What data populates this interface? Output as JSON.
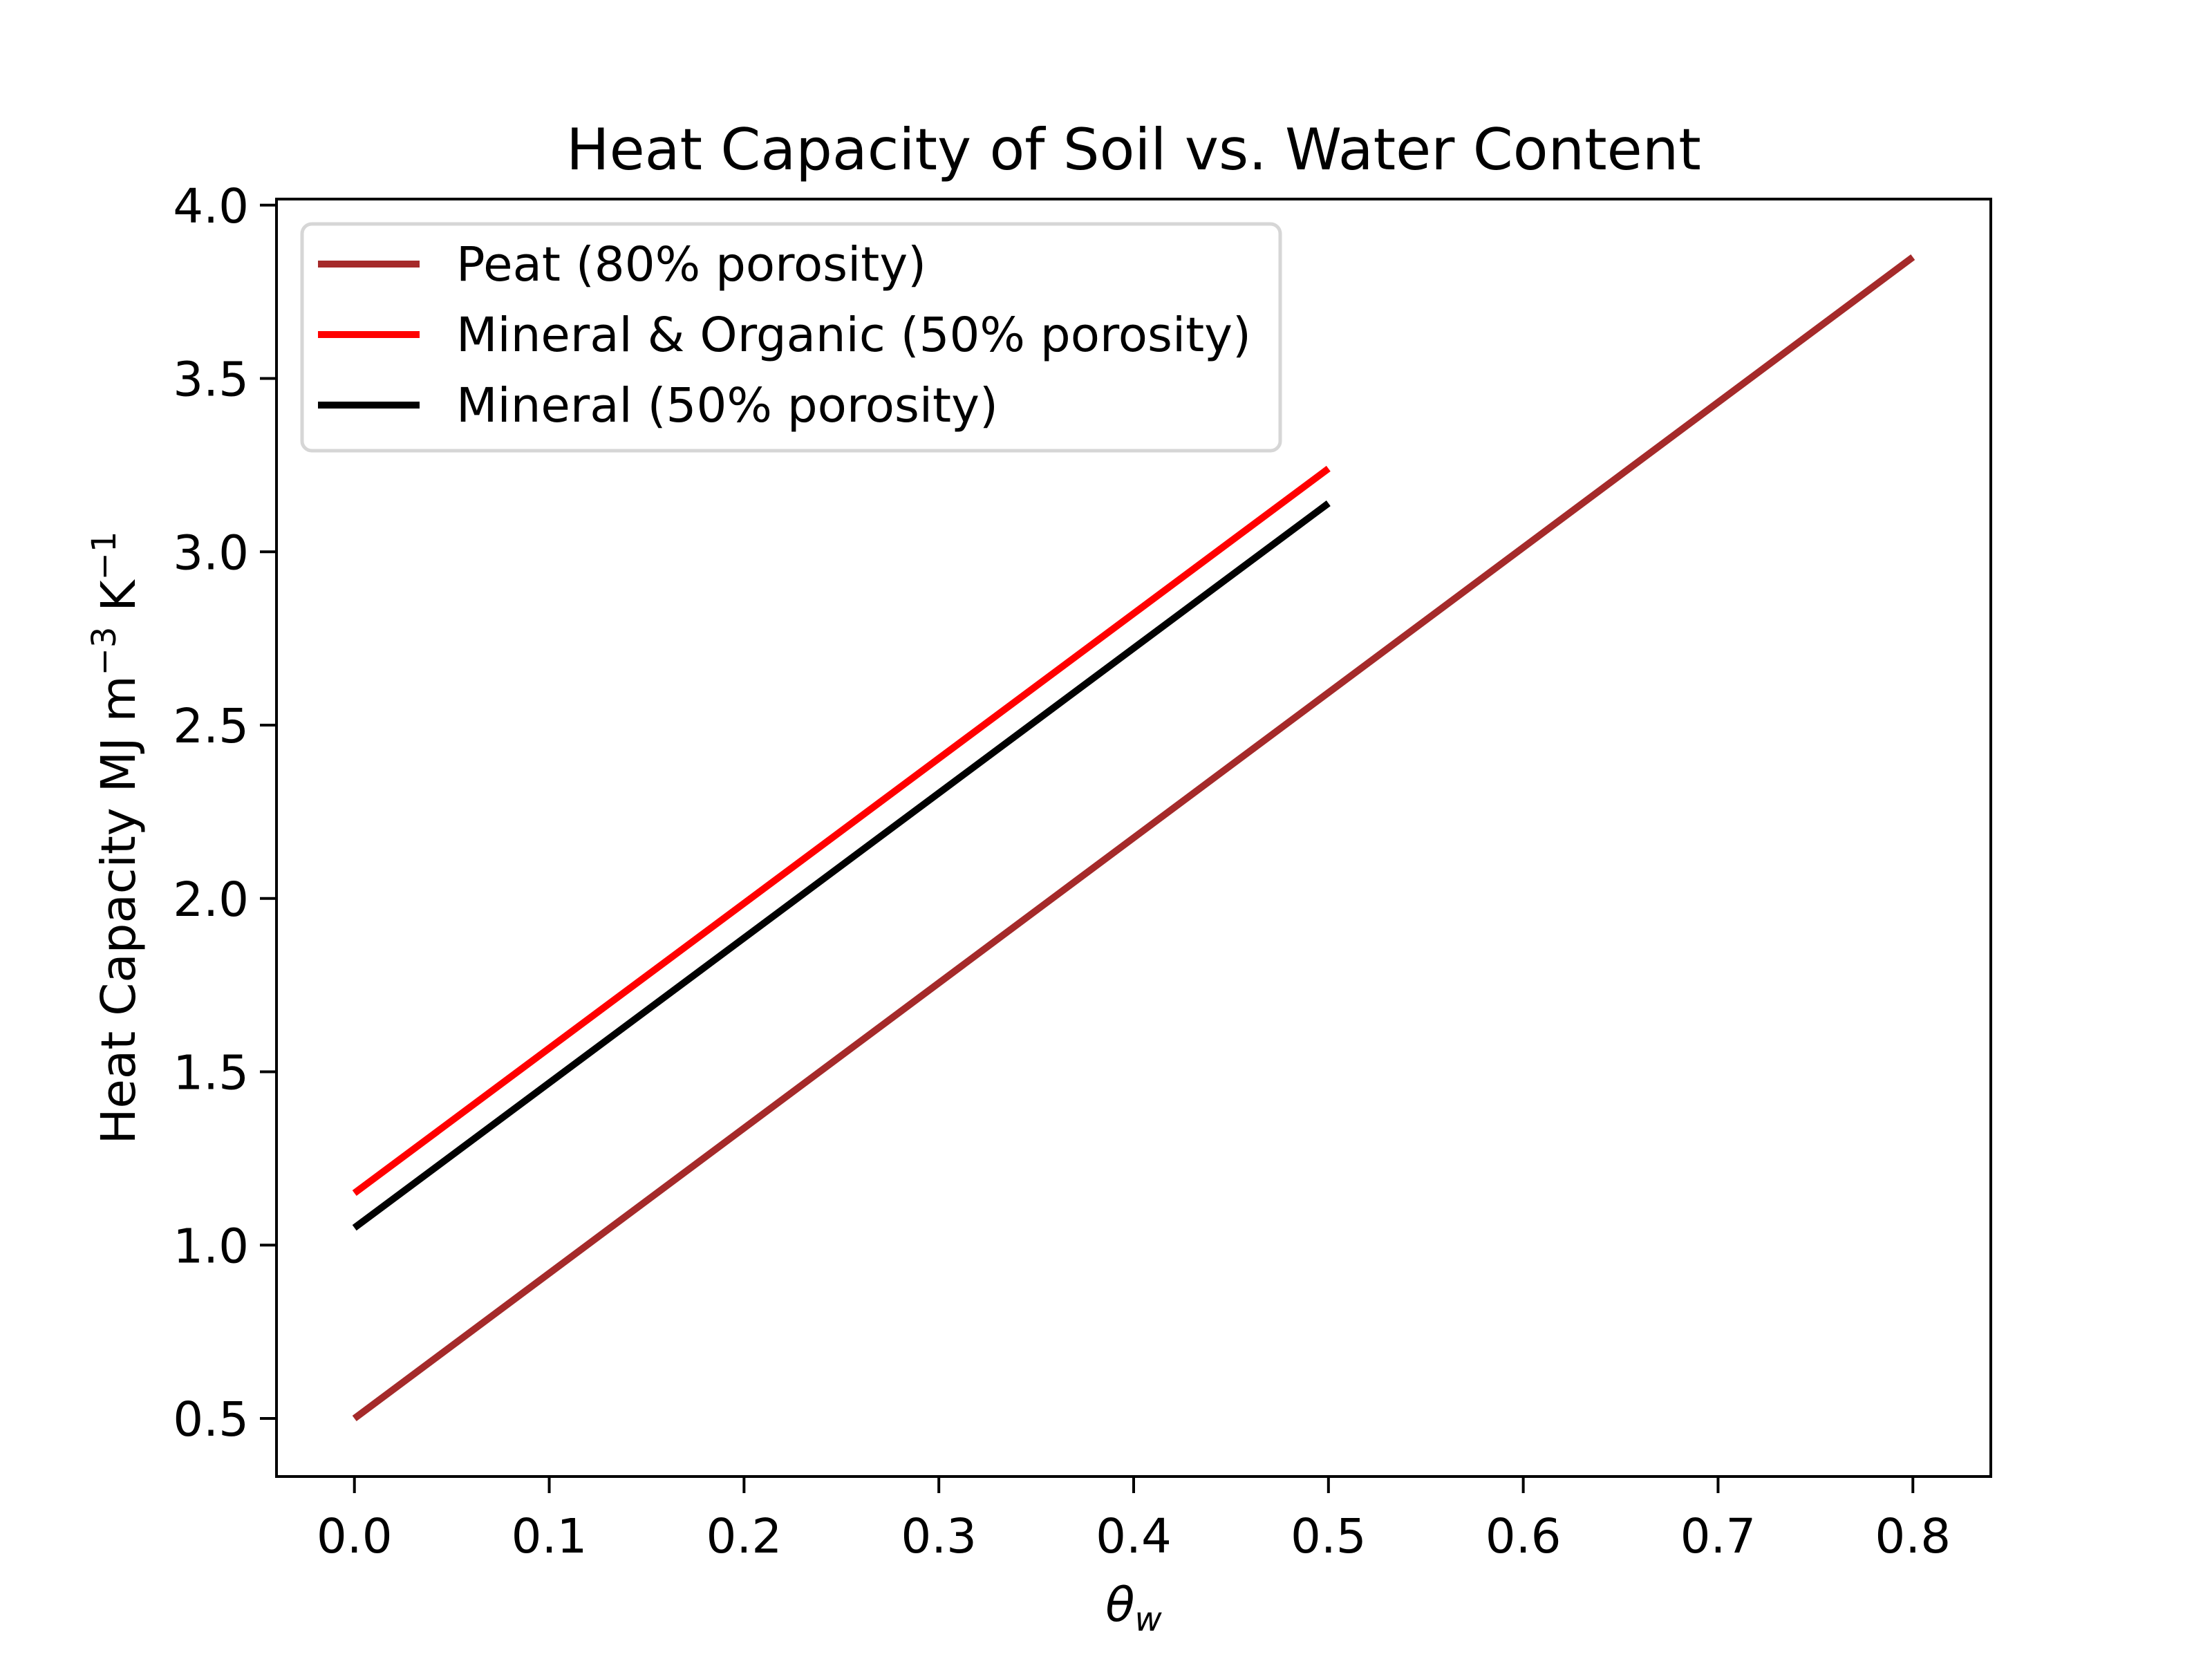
{
  "chart_data": {
    "type": "line",
    "title": "Heat Capacity of Soil vs. Water Content",
    "xlabel": "θ",
    "xlabel_subscript": "w",
    "ylabel": "Heat Capacity MJ m",
    "ylabel_sup1": "−3",
    "ylabel_mid": " K",
    "ylabel_sup2": "−1",
    "xlim": [
      -0.04,
      0.84
    ],
    "ylim": [
      0.3325,
      4.0175
    ],
    "xticks": [
      0.0,
      0.1,
      0.2,
      0.3,
      0.4,
      0.5,
      0.6,
      0.7,
      0.8
    ],
    "xtick_labels": [
      "0.0",
      "0.1",
      "0.2",
      "0.3",
      "0.4",
      "0.5",
      "0.6",
      "0.7",
      "0.8"
    ],
    "yticks": [
      0.5,
      1.0,
      1.5,
      2.0,
      2.5,
      3.0,
      3.5,
      4.0
    ],
    "ytick_labels": [
      "0.5",
      "1.0",
      "1.5",
      "2.0",
      "2.5",
      "3.0",
      "3.5",
      "4.0"
    ],
    "grid": false,
    "legend_position": "top-left",
    "series": [
      {
        "name": "Peat (80% porosity)",
        "color": "#a52a2a",
        "x": [
          0.0,
          0.8
        ],
        "y": [
          0.5,
          3.85
        ]
      },
      {
        "name": "Mineral & Organic (50% porosity)",
        "color": "#ff0000",
        "x": [
          0.0,
          0.5
        ],
        "y": [
          1.15,
          3.24
        ]
      },
      {
        "name": "Mineral (50% porosity)",
        "color": "#000000",
        "x": [
          0.0,
          0.5
        ],
        "y": [
          1.05,
          3.14
        ]
      }
    ]
  }
}
